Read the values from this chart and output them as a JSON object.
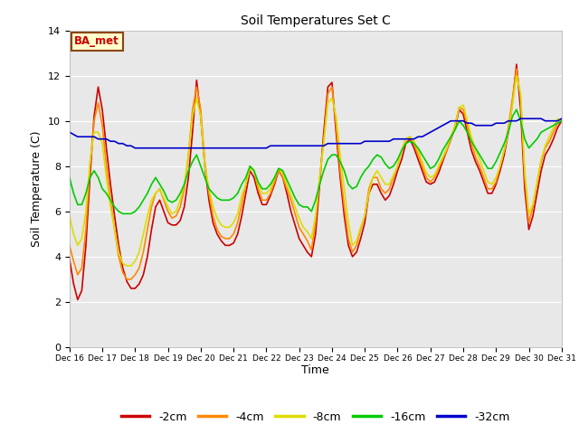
{
  "title": "Soil Temperatures Set C",
  "xlabel": "Time",
  "ylabel": "Soil Temperature (C)",
  "ylim": [
    0,
    14
  ],
  "xlim": [
    0,
    360
  ],
  "fig_bg": "#ffffff",
  "plot_bg": "#e8e8e8",
  "annotation_text": "BA_met",
  "annotation_bg": "#ffffcc",
  "annotation_border": "#8b4513",
  "annotation_text_color": "#cc0000",
  "x_tick_labels": [
    "Dec 16",
    "Dec 17",
    "Dec 18",
    "Dec 19",
    "Dec 20",
    "Dec 21",
    "Dec 22",
    "Dec 23",
    "Dec 24",
    "Dec 25",
    "Dec 26",
    "Dec 27",
    "Dec 28",
    "Dec 29",
    "Dec 30",
    "Dec 31"
  ],
  "x_tick_positions": [
    0,
    24,
    48,
    72,
    96,
    120,
    144,
    168,
    192,
    216,
    240,
    264,
    288,
    312,
    336,
    360
  ],
  "yticks": [
    0,
    2,
    4,
    6,
    8,
    10,
    12,
    14
  ],
  "series_order": [
    "-2cm",
    "-4cm",
    "-8cm",
    "-16cm",
    "-32cm"
  ],
  "series": {
    "-2cm": {
      "color": "#cc0000",
      "data_x": [
        0,
        3,
        6,
        9,
        12,
        15,
        18,
        21,
        24,
        27,
        30,
        33,
        36,
        39,
        42,
        45,
        48,
        51,
        54,
        57,
        60,
        63,
        66,
        69,
        72,
        75,
        78,
        81,
        84,
        87,
        90,
        93,
        96,
        99,
        102,
        105,
        108,
        111,
        114,
        117,
        120,
        123,
        126,
        129,
        132,
        135,
        138,
        141,
        144,
        147,
        150,
        153,
        156,
        159,
        162,
        165,
        168,
        171,
        174,
        177,
        180,
        183,
        186,
        189,
        192,
        195,
        198,
        201,
        204,
        207,
        210,
        213,
        216,
        219,
        222,
        225,
        228,
        231,
        234,
        237,
        240,
        243,
        246,
        249,
        252,
        255,
        258,
        261,
        264,
        267,
        270,
        273,
        276,
        279,
        282,
        285,
        288,
        291,
        294,
        297,
        300,
        303,
        306,
        309,
        312,
        315,
        318,
        321,
        324,
        327,
        330,
        333,
        336,
        339,
        342,
        345,
        348,
        351,
        354,
        357,
        360
      ],
      "data_y": [
        3.9,
        2.8,
        2.1,
        2.5,
        4.5,
        7.5,
        10.2,
        11.5,
        10.5,
        8.8,
        7.2,
        5.8,
        4.5,
        3.5,
        2.9,
        2.6,
        2.6,
        2.8,
        3.2,
        4.0,
        5.2,
        6.2,
        6.5,
        6.0,
        5.5,
        5.4,
        5.4,
        5.6,
        6.2,
        7.5,
        9.5,
        11.8,
        10.2,
        8.0,
        6.5,
        5.5,
        5.0,
        4.7,
        4.5,
        4.5,
        4.6,
        5.0,
        5.8,
        6.8,
        7.8,
        7.5,
        6.8,
        6.3,
        6.3,
        6.7,
        7.2,
        7.8,
        7.5,
        6.8,
        6.0,
        5.4,
        4.8,
        4.5,
        4.2,
        4.0,
        5.0,
        7.2,
        9.5,
        11.5,
        11.7,
        9.5,
        7.5,
        5.8,
        4.5,
        4.0,
        4.2,
        4.8,
        5.5,
        6.8,
        7.2,
        7.2,
        6.8,
        6.5,
        6.7,
        7.2,
        7.8,
        8.3,
        9.0,
        9.2,
        8.8,
        8.3,
        7.8,
        7.3,
        7.2,
        7.3,
        7.7,
        8.2,
        8.7,
        9.2,
        9.7,
        10.5,
        10.3,
        9.5,
        8.7,
        8.2,
        7.8,
        7.3,
        6.8,
        6.8,
        7.2,
        7.8,
        8.5,
        9.5,
        10.8,
        12.5,
        10.5,
        7.0,
        5.2,
        5.8,
        6.8,
        7.8,
        8.5,
        8.8,
        9.2,
        9.7,
        10.0
      ]
    },
    "-4cm": {
      "color": "#ff8800",
      "data_x": [
        0,
        3,
        6,
        9,
        12,
        15,
        18,
        21,
        24,
        27,
        30,
        33,
        36,
        39,
        42,
        45,
        48,
        51,
        54,
        57,
        60,
        63,
        66,
        69,
        72,
        75,
        78,
        81,
        84,
        87,
        90,
        93,
        96,
        99,
        102,
        105,
        108,
        111,
        114,
        117,
        120,
        123,
        126,
        129,
        132,
        135,
        138,
        141,
        144,
        147,
        150,
        153,
        156,
        159,
        162,
        165,
        168,
        171,
        174,
        177,
        180,
        183,
        186,
        189,
        192,
        195,
        198,
        201,
        204,
        207,
        210,
        213,
        216,
        219,
        222,
        225,
        228,
        231,
        234,
        237,
        240,
        243,
        246,
        249,
        252,
        255,
        258,
        261,
        264,
        267,
        270,
        273,
        276,
        279,
        282,
        285,
        288,
        291,
        294,
        297,
        300,
        303,
        306,
        309,
        312,
        315,
        318,
        321,
        324,
        327,
        330,
        333,
        336,
        339,
        342,
        345,
        348,
        351,
        354,
        357,
        360
      ],
      "data_y": [
        4.5,
        3.8,
        3.2,
        3.5,
        5.2,
        8.0,
        10.0,
        10.8,
        9.8,
        8.0,
        6.5,
        5.2,
        4.0,
        3.3,
        3.0,
        3.0,
        3.2,
        3.5,
        4.2,
        5.2,
        6.2,
        6.8,
        7.0,
        6.5,
        6.0,
        5.7,
        5.8,
        6.2,
        7.0,
        8.5,
        10.5,
        11.5,
        10.5,
        8.2,
        6.8,
        5.8,
        5.2,
        4.9,
        4.8,
        4.8,
        5.0,
        5.5,
        6.3,
        7.2,
        8.0,
        7.8,
        7.0,
        6.5,
        6.5,
        6.8,
        7.3,
        7.8,
        7.5,
        7.0,
        6.5,
        5.9,
        5.3,
        5.0,
        4.7,
        4.3,
        5.5,
        7.5,
        9.2,
        11.2,
        11.5,
        9.8,
        7.8,
        6.2,
        4.8,
        4.2,
        4.5,
        5.2,
        5.8,
        7.0,
        7.5,
        7.5,
        7.0,
        6.8,
        7.0,
        7.5,
        8.0,
        8.7,
        9.2,
        9.3,
        9.0,
        8.5,
        8.0,
        7.5,
        7.3,
        7.5,
        7.9,
        8.3,
        8.7,
        9.2,
        9.8,
        10.6,
        10.5,
        9.8,
        9.0,
        8.4,
        8.0,
        7.5,
        7.0,
        7.0,
        7.3,
        8.0,
        8.7,
        9.7,
        11.0,
        12.3,
        11.0,
        7.5,
        5.5,
        6.2,
        7.2,
        8.2,
        8.8,
        9.1,
        9.5,
        9.9,
        10.0
      ]
    },
    "-8cm": {
      "color": "#dddd00",
      "data_x": [
        0,
        3,
        6,
        9,
        12,
        15,
        18,
        21,
        24,
        27,
        30,
        33,
        36,
        39,
        42,
        45,
        48,
        51,
        54,
        57,
        60,
        63,
        66,
        69,
        72,
        75,
        78,
        81,
        84,
        87,
        90,
        93,
        96,
        99,
        102,
        105,
        108,
        111,
        114,
        117,
        120,
        123,
        126,
        129,
        132,
        135,
        138,
        141,
        144,
        147,
        150,
        153,
        156,
        159,
        162,
        165,
        168,
        171,
        174,
        177,
        180,
        183,
        186,
        189,
        192,
        195,
        198,
        201,
        204,
        207,
        210,
        213,
        216,
        219,
        222,
        225,
        228,
        231,
        234,
        237,
        240,
        243,
        246,
        249,
        252,
        255,
        258,
        261,
        264,
        267,
        270,
        273,
        276,
        279,
        282,
        285,
        288,
        291,
        294,
        297,
        300,
        303,
        306,
        309,
        312,
        315,
        318,
        321,
        324,
        327,
        330,
        333,
        336,
        339,
        342,
        345,
        348,
        351,
        354,
        357,
        360
      ],
      "data_y": [
        5.8,
        5.0,
        4.5,
        4.8,
        6.0,
        8.2,
        9.5,
        9.5,
        9.0,
        7.5,
        6.2,
        5.2,
        4.2,
        3.7,
        3.6,
        3.6,
        3.8,
        4.2,
        5.0,
        5.8,
        6.5,
        6.8,
        7.0,
        6.6,
        6.2,
        5.9,
        6.0,
        6.5,
        7.2,
        8.5,
        10.2,
        11.0,
        10.2,
        8.0,
        7.0,
        6.2,
        5.7,
        5.4,
        5.3,
        5.3,
        5.5,
        5.9,
        6.7,
        7.2,
        7.9,
        7.8,
        7.2,
        6.8,
        6.8,
        7.0,
        7.5,
        7.9,
        7.7,
        7.2,
        6.7,
        6.2,
        5.7,
        5.3,
        5.1,
        4.8,
        5.8,
        7.5,
        9.0,
        10.8,
        11.0,
        10.2,
        8.5,
        7.0,
        5.5,
        4.5,
        4.7,
        5.3,
        5.8,
        6.8,
        7.5,
        7.8,
        7.5,
        7.2,
        7.2,
        7.6,
        8.0,
        8.7,
        9.2,
        9.3,
        9.1,
        8.7,
        8.2,
        7.7,
        7.5,
        7.6,
        8.0,
        8.4,
        8.8,
        9.3,
        9.8,
        10.6,
        10.7,
        10.0,
        9.3,
        8.7,
        8.3,
        7.8,
        7.3,
        7.2,
        7.5,
        8.0,
        8.7,
        9.5,
        10.7,
        12.0,
        11.2,
        7.8,
        5.9,
        6.3,
        7.3,
        8.3,
        8.9,
        9.3,
        9.7,
        10.1,
        10.0
      ]
    },
    "-16cm": {
      "color": "#00cc00",
      "data_x": [
        0,
        3,
        6,
        9,
        12,
        15,
        18,
        21,
        24,
        27,
        30,
        33,
        36,
        39,
        42,
        45,
        48,
        51,
        54,
        57,
        60,
        63,
        66,
        69,
        72,
        75,
        78,
        81,
        84,
        87,
        90,
        93,
        96,
        99,
        102,
        105,
        108,
        111,
        114,
        117,
        120,
        123,
        126,
        129,
        132,
        135,
        138,
        141,
        144,
        147,
        150,
        153,
        156,
        159,
        162,
        165,
        168,
        171,
        174,
        177,
        180,
        183,
        186,
        189,
        192,
        195,
        198,
        201,
        204,
        207,
        210,
        213,
        216,
        219,
        222,
        225,
        228,
        231,
        234,
        237,
        240,
        243,
        246,
        249,
        252,
        255,
        258,
        261,
        264,
        267,
        270,
        273,
        276,
        279,
        282,
        285,
        288,
        291,
        294,
        297,
        300,
        303,
        306,
        309,
        312,
        315,
        318,
        321,
        324,
        327,
        330,
        333,
        336,
        339,
        342,
        345,
        348,
        351,
        354,
        357,
        360
      ],
      "data_y": [
        7.5,
        6.8,
        6.3,
        6.3,
        6.8,
        7.5,
        7.8,
        7.5,
        7.0,
        6.8,
        6.5,
        6.2,
        6.0,
        5.9,
        5.9,
        5.9,
        6.0,
        6.2,
        6.5,
        6.8,
        7.2,
        7.5,
        7.2,
        6.9,
        6.5,
        6.4,
        6.5,
        6.8,
        7.2,
        7.8,
        8.2,
        8.5,
        8.0,
        7.5,
        7.0,
        6.8,
        6.6,
        6.5,
        6.5,
        6.5,
        6.6,
        6.8,
        7.2,
        7.5,
        8.0,
        7.8,
        7.3,
        7.0,
        7.0,
        7.2,
        7.5,
        7.9,
        7.8,
        7.4,
        7.0,
        6.6,
        6.3,
        6.2,
        6.2,
        6.0,
        6.5,
        7.2,
        7.8,
        8.3,
        8.5,
        8.5,
        8.2,
        7.8,
        7.2,
        7.0,
        7.1,
        7.5,
        7.8,
        8.0,
        8.3,
        8.5,
        8.4,
        8.1,
        7.9,
        8.0,
        8.3,
        8.7,
        9.0,
        9.1,
        9.0,
        8.8,
        8.5,
        8.2,
        7.9,
        8.0,
        8.3,
        8.7,
        9.0,
        9.3,
        9.6,
        10.0,
        9.8,
        9.5,
        9.1,
        8.8,
        8.5,
        8.2,
        7.9,
        7.9,
        8.2,
        8.6,
        9.0,
        9.5,
        10.2,
        10.5,
        10.0,
        9.2,
        8.8,
        9.0,
        9.2,
        9.5,
        9.6,
        9.7,
        9.8,
        9.9,
        10.0
      ]
    },
    "-32cm": {
      "color": "#0000cc",
      "data_x": [
        0,
        3,
        6,
        9,
        12,
        15,
        18,
        21,
        24,
        27,
        30,
        33,
        36,
        39,
        42,
        45,
        48,
        51,
        54,
        57,
        60,
        63,
        66,
        69,
        72,
        75,
        78,
        81,
        84,
        87,
        90,
        93,
        96,
        99,
        102,
        105,
        108,
        111,
        114,
        117,
        120,
        123,
        126,
        129,
        132,
        135,
        138,
        141,
        144,
        147,
        150,
        153,
        156,
        159,
        162,
        165,
        168,
        171,
        174,
        177,
        180,
        183,
        186,
        189,
        192,
        195,
        198,
        201,
        204,
        207,
        210,
        213,
        216,
        219,
        222,
        225,
        228,
        231,
        234,
        237,
        240,
        243,
        246,
        249,
        252,
        255,
        258,
        261,
        264,
        267,
        270,
        273,
        276,
        279,
        282,
        285,
        288,
        291,
        294,
        297,
        300,
        303,
        306,
        309,
        312,
        315,
        318,
        321,
        324,
        327,
        330,
        333,
        336,
        339,
        342,
        345,
        348,
        351,
        354,
        357,
        360
      ],
      "data_y": [
        9.5,
        9.4,
        9.3,
        9.3,
        9.3,
        9.3,
        9.3,
        9.2,
        9.2,
        9.2,
        9.1,
        9.1,
        9.0,
        9.0,
        8.9,
        8.9,
        8.8,
        8.8,
        8.8,
        8.8,
        8.8,
        8.8,
        8.8,
        8.8,
        8.8,
        8.8,
        8.8,
        8.8,
        8.8,
        8.8,
        8.8,
        8.8,
        8.8,
        8.8,
        8.8,
        8.8,
        8.8,
        8.8,
        8.8,
        8.8,
        8.8,
        8.8,
        8.8,
        8.8,
        8.8,
        8.8,
        8.8,
        8.8,
        8.8,
        8.9,
        8.9,
        8.9,
        8.9,
        8.9,
        8.9,
        8.9,
        8.9,
        8.9,
        8.9,
        8.9,
        8.9,
        8.9,
        8.9,
        9.0,
        9.0,
        9.0,
        9.0,
        9.0,
        9.0,
        9.0,
        9.0,
        9.0,
        9.1,
        9.1,
        9.1,
        9.1,
        9.1,
        9.1,
        9.1,
        9.2,
        9.2,
        9.2,
        9.2,
        9.2,
        9.2,
        9.3,
        9.3,
        9.4,
        9.5,
        9.6,
        9.7,
        9.8,
        9.9,
        10.0,
        10.0,
        10.0,
        10.0,
        9.9,
        9.9,
        9.8,
        9.8,
        9.8,
        9.8,
        9.8,
        9.9,
        9.9,
        9.9,
        10.0,
        10.0,
        10.0,
        10.1,
        10.1,
        10.1,
        10.1,
        10.1,
        10.1,
        10.0,
        10.0,
        10.0,
        10.0,
        10.1
      ]
    }
  },
  "legend_entries": [
    "-2cm",
    "-4cm",
    "-8cm",
    "-16cm",
    "-32cm"
  ],
  "legend_colors": [
    "#cc0000",
    "#ff8800",
    "#dddd00",
    "#00cc00",
    "#0000cc"
  ]
}
